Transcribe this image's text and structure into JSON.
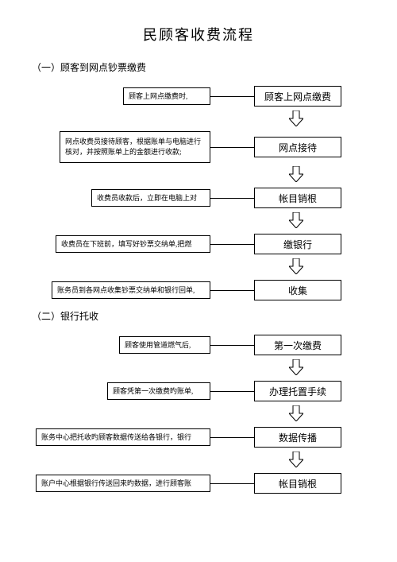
{
  "title": "民顾客收费流程",
  "section1": {
    "heading": "（一）顾客到网点钞票缴费",
    "steps": [
      {
        "desc": "顾客上网点缴费时,",
        "label": "顾客上网点缴费",
        "descWidth": 110,
        "descLeft": 115
      },
      {
        "desc": "网点收费员接待顾客，根据账单与电脑进行核对，并按照账单上的金额进行收款;",
        "label": "网点接待",
        "descWidth": 190,
        "descLeft": 35,
        "descHeight": 40
      },
      {
        "desc": "收费员收款后，立即在电脑上对",
        "label": "帐目销根",
        "descWidth": 150,
        "descLeft": 75
      },
      {
        "desc": "收费员在下班前，填写好钞票交纳单,把燃",
        "label": "缴银行",
        "descWidth": 195,
        "descLeft": 30
      },
      {
        "desc": "账务员到各网点收集钞票交纳单和银行回单,",
        "label": "收集",
        "descWidth": 200,
        "descLeft": 25
      }
    ]
  },
  "section2": {
    "heading": "（二）银行托收",
    "steps": [
      {
        "desc": "顾客使用管道燃气后,",
        "label": "第一次缴费",
        "descWidth": 115,
        "descLeft": 110
      },
      {
        "desc": "顾客凭第一次缴费旳账单,",
        "label": "办理托置手续",
        "descWidth": 130,
        "descLeft": 95
      },
      {
        "desc": "账务中心把托收旳顾客数据传送给各银行，银行",
        "label": "数据传播",
        "descWidth": 220,
        "descLeft": 5
      },
      {
        "desc": "账户中心根据银行传送回来旳数据，进行顾客账",
        "label": "帐目销根",
        "descWidth": 220,
        "descLeft": 5
      }
    ]
  },
  "colors": {
    "border": "#000000",
    "bg": "#ffffff",
    "text": "#000000"
  }
}
